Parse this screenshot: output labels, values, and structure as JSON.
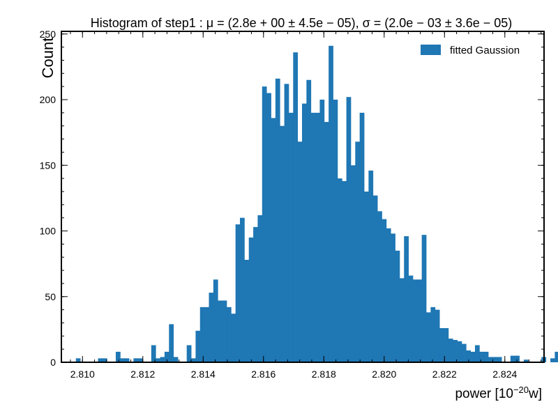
{
  "chart_data": {
    "type": "bar",
    "title": "Histogram of step1 :  μ = (2.8e + 00 ± 4.5e − 05),  σ = (2.0e − 03 ± 3.6e − 05)",
    "xlabel": {
      "base": "power [10",
      "sup": "−20",
      "tail": "w]"
    },
    "ylabel": "Count",
    "xlim": [
      2.8093,
      2.8253
    ],
    "ylim": [
      0,
      252
    ],
    "x_ticks": [
      2.81,
      2.812,
      2.814,
      2.816,
      2.818,
      2.82,
      2.822,
      2.824
    ],
    "x_tick_labels": [
      "2.810",
      "2.812",
      "2.814",
      "2.816",
      "2.818",
      "2.820",
      "2.822",
      "2.824"
    ],
    "y_ticks": [
      0,
      50,
      100,
      150,
      200,
      250
    ],
    "y_tick_labels": [
      "0",
      "50",
      "100",
      "150",
      "200",
      "250"
    ],
    "grid": false,
    "legend_position": "top-right",
    "series": [
      {
        "name": "fitted Gaussion",
        "color": "#1f77b4",
        "bin_start": 2.80978,
        "bin_width": 0.000147,
        "values": [
          3,
          0,
          0,
          0,
          0,
          3,
          3,
          0,
          0,
          8,
          3,
          3,
          0,
          3,
          3,
          0,
          0,
          13,
          3,
          4,
          8,
          29,
          4,
          0,
          0,
          13,
          3,
          24,
          42,
          42,
          53,
          63,
          47,
          47,
          42,
          37,
          105,
          110,
          78,
          95,
          103,
          112,
          210,
          205,
          186,
          216,
          180,
          212,
          190,
          236,
          168,
          197,
          215,
          190,
          190,
          200,
          183,
          241,
          200,
          140,
          138,
          202,
          150,
          168,
          190,
          130,
          146,
          127,
          115,
          109,
          102,
          98,
          85,
          64,
          96,
          66,
          63,
          63,
          97,
          38,
          42,
          40,
          26,
          26,
          18,
          17,
          16,
          14,
          9,
          8,
          13,
          8,
          8,
          4,
          4,
          4,
          0,
          0,
          5,
          5,
          0,
          2,
          0,
          0,
          0,
          4,
          0,
          3,
          8
        ]
      }
    ]
  }
}
